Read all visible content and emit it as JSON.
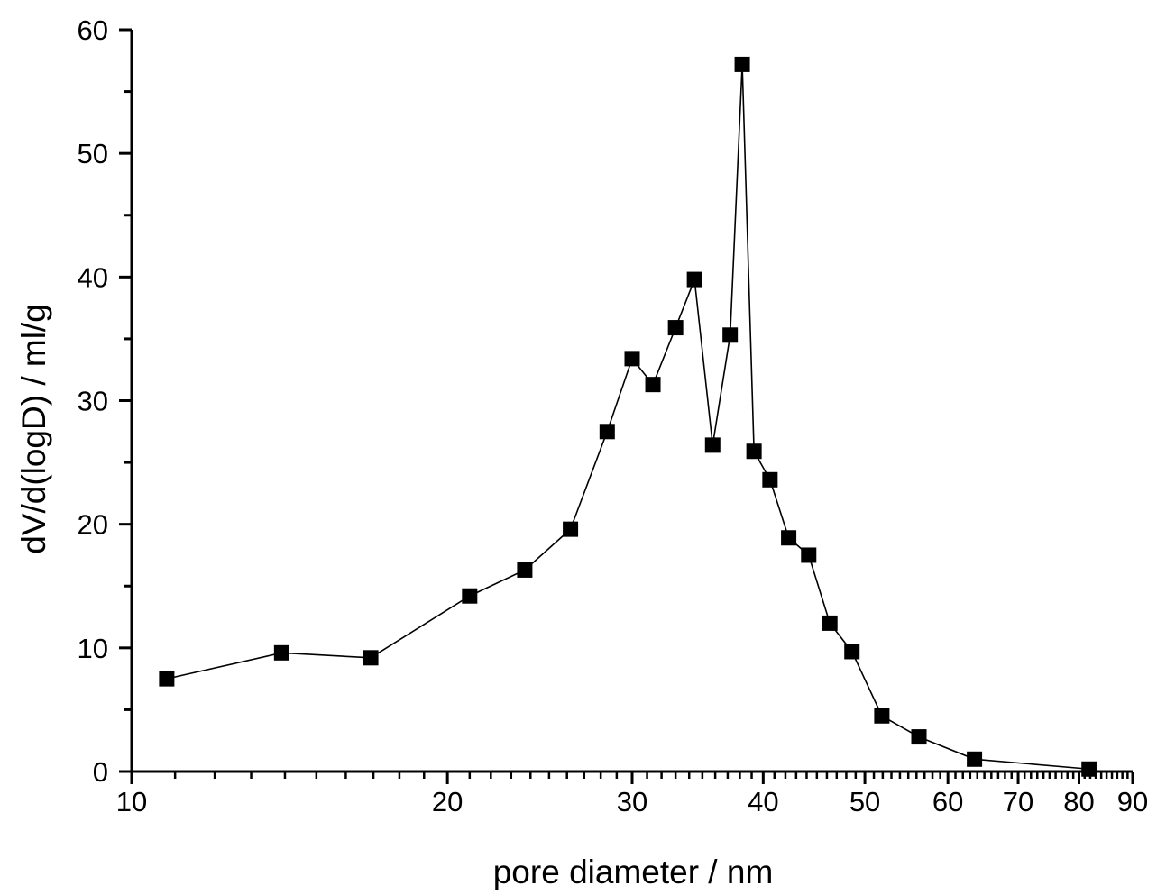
{
  "chart_data": {
    "type": "line",
    "x_scale": "log",
    "xlabel": "pore diameter / nm",
    "ylabel": "dV/d(logD) / ml/g",
    "xlim": [
      10,
      90
    ],
    "ylim": [
      0,
      60
    ],
    "x_tick_labels": [
      "10",
      "20",
      "30",
      "40",
      "50",
      "60",
      "70",
      "80",
      "90"
    ],
    "y_tick_labels": [
      "0",
      "10",
      "20",
      "30",
      "40",
      "50",
      "60"
    ],
    "grid": false,
    "legend": "none",
    "marker": "filled-square",
    "line_color": "#000000",
    "marker_color": "#000000",
    "series": [
      {
        "x": [
          10.8,
          13.9,
          16.9,
          21.0,
          23.7,
          26.2,
          28.4,
          30.0,
          31.4,
          33.0,
          34.4,
          35.8,
          37.2,
          38.2,
          39.2,
          40.6,
          42.3,
          44.2,
          46.3,
          48.6,
          51.9,
          56.3,
          63.6,
          81.8
        ],
        "y": [
          7.5,
          9.6,
          9.2,
          14.2,
          16.3,
          19.6,
          27.5,
          33.4,
          31.3,
          35.9,
          39.8,
          26.4,
          35.3,
          57.2,
          25.9,
          23.6,
          18.9,
          17.5,
          12.0,
          9.7,
          4.5,
          2.8,
          1.0,
          0.2
        ]
      }
    ]
  }
}
